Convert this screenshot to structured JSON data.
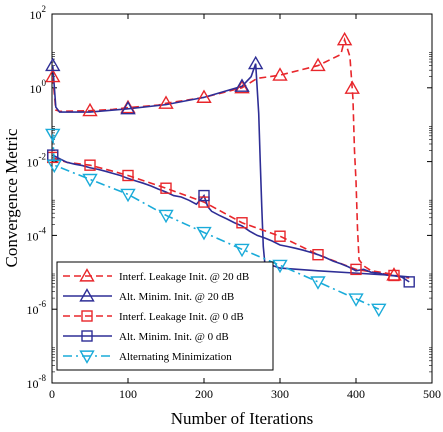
{
  "chart_data": {
    "type": "line",
    "xlabel": "Number of Iterations",
    "ylabel": "Convergence Metric",
    "xlim": [
      0,
      500
    ],
    "ylim": [
      1e-08,
      100
    ],
    "yscale": "log",
    "xticks": [
      0,
      100,
      200,
      300,
      400,
      500
    ],
    "xtick_labels": [
      "0",
      "100",
      "200",
      "300",
      "400",
      "500"
    ],
    "yticks": [
      1e-08,
      1e-06,
      0.0001,
      0.01,
      1,
      100
    ],
    "ytick_labels": [
      {
        "base": "10",
        "exp": "-8"
      },
      {
        "base": "10",
        "exp": "-6"
      },
      {
        "base": "10",
        "exp": "-4"
      },
      {
        "base": "10",
        "exp": "-2"
      },
      {
        "base": "10",
        "exp": "0"
      },
      {
        "base": "10",
        "exp": "2"
      }
    ],
    "grid": false,
    "legend_position": "bottom-left",
    "series": [
      {
        "name": "Interf. Leakage Init. @ 20 dB",
        "color": "#e8262b",
        "dash": "dash",
        "marker": "triangle-up",
        "points": [
          [
            1,
            2
          ],
          [
            5,
            0.25
          ],
          [
            10,
            0.23
          ],
          [
            50,
            0.24
          ],
          [
            80,
            0.26
          ],
          [
            100,
            0.29
          ],
          [
            140,
            0.34
          ],
          [
            150,
            0.38
          ],
          [
            200,
            0.55
          ],
          [
            250,
            1.0
          ],
          [
            270,
            1.8
          ],
          [
            300,
            2.2
          ],
          [
            350,
            4.0
          ],
          [
            380,
            8.0
          ],
          [
            385,
            20
          ],
          [
            392,
            7.0
          ],
          [
            396,
            0.5
          ],
          [
            398,
            0.02
          ],
          [
            400,
            0.003
          ],
          [
            402,
            0.00015
          ],
          [
            404,
            2.2e-05
          ],
          [
            410,
            1.5e-05
          ],
          [
            420,
            1.1e-05
          ],
          [
            440,
            9.5e-06
          ],
          [
            460,
            7.5e-06
          ],
          [
            470,
            7e-06
          ]
        ],
        "marker_x": [
          1,
          50,
          100,
          150,
          200,
          250,
          300,
          350,
          385,
          395,
          450
        ]
      },
      {
        "name": "Alt. Minim. Init. @ 20 dB",
        "color": "#2e2e96",
        "dash": "solid",
        "marker": "triangle-up",
        "points": [
          [
            1,
            4
          ],
          [
            5,
            0.3
          ],
          [
            10,
            0.22
          ],
          [
            50,
            0.22
          ],
          [
            100,
            0.27
          ],
          [
            150,
            0.35
          ],
          [
            200,
            0.55
          ],
          [
            250,
            1.1
          ],
          [
            262,
            2.0
          ],
          [
            268,
            4.5
          ],
          [
            272,
            0.2
          ],
          [
            274,
            0.01
          ],
          [
            276,
            0.0006
          ],
          [
            278,
            5e-05
          ],
          [
            280,
            1.8e-05
          ],
          [
            300,
            1.3e-05
          ],
          [
            350,
            1.1e-05
          ],
          [
            400,
            9.5e-06
          ],
          [
            440,
            8.5e-06
          ],
          [
            470,
            7.5e-06
          ]
        ],
        "marker_x": [
          1,
          100,
          250,
          268
        ]
      },
      {
        "name": "Interf. Leakage Init. @ 0 dB",
        "color": "#e8262b",
        "dash": "dash",
        "marker": "square",
        "points": [
          [
            1,
            0.013
          ],
          [
            10,
            0.011
          ],
          [
            20,
            0.0095
          ],
          [
            50,
            0.008
          ],
          [
            80,
            0.0055
          ],
          [
            100,
            0.0042
          ],
          [
            150,
            0.0019
          ],
          [
            200,
            0.0008
          ],
          [
            250,
            0.00022
          ],
          [
            300,
            9.5e-05
          ],
          [
            350,
            3e-05
          ],
          [
            400,
            1.2e-05
          ],
          [
            450,
            8.2e-06
          ]
        ],
        "marker_x": [
          1,
          50,
          100,
          150,
          200,
          250,
          300,
          350,
          400,
          450
        ]
      },
      {
        "name": "Alt. Minim. Init. @ 0 dB",
        "color": "#2e2e96",
        "dash": "solid",
        "marker": "square",
        "points": [
          [
            1,
            0.015
          ],
          [
            10,
            0.012
          ],
          [
            20,
            0.0095
          ],
          [
            30,
            0.0085
          ],
          [
            40,
            0.0078
          ],
          [
            50,
            0.0068
          ],
          [
            60,
            0.0062
          ],
          [
            70,
            0.0055
          ],
          [
            80,
            0.0048
          ],
          [
            90,
            0.0042
          ],
          [
            100,
            0.0035
          ],
          [
            110,
            0.003
          ],
          [
            120,
            0.0026
          ],
          [
            130,
            0.0022
          ],
          [
            140,
            0.0018
          ],
          [
            150,
            0.0015
          ],
          [
            160,
            0.0012
          ],
          [
            170,
            0.0011
          ],
          [
            180,
            0.0009
          ],
          [
            190,
            0.0007
          ],
          [
            200,
            0.0012
          ],
          [
            205,
            0.0006
          ],
          [
            210,
            0.00045
          ],
          [
            220,
            0.00035
          ],
          [
            230,
            0.00028
          ],
          [
            240,
            0.00022
          ],
          [
            250,
            0.00018
          ],
          [
            260,
            0.00013
          ],
          [
            270,
            0.0001
          ],
          [
            280,
            8.5e-05
          ],
          [
            290,
            7e-05
          ],
          [
            300,
            5.5e-05
          ],
          [
            310,
            5e-05
          ],
          [
            320,
            4.5e-05
          ],
          [
            330,
            4e-05
          ],
          [
            340,
            3.5e-05
          ],
          [
            350,
            3e-05
          ],
          [
            360,
            2.5e-05
          ],
          [
            370,
            2e-05
          ],
          [
            380,
            1.7e-05
          ],
          [
            390,
            1.4e-05
          ],
          [
            400,
            1.1e-05
          ],
          [
            410,
            1.2e-05
          ],
          [
            420,
            1e-05
          ],
          [
            430,
            9.5e-06
          ],
          [
            440,
            8.5e-06
          ],
          [
            450,
            8e-06
          ],
          [
            460,
            7.5e-06
          ],
          [
            470,
            5.5e-06
          ]
        ],
        "marker_x": [
          1,
          200,
          470
        ]
      },
      {
        "name": "Alternating Minimization",
        "color": "#1aabd9",
        "dash": "dashdot",
        "marker": "triangle-down",
        "points": [
          [
            1,
            0.055
          ],
          [
            3,
            0.008
          ],
          [
            50,
            0.0033
          ],
          [
            100,
            0.0013
          ],
          [
            150,
            0.00035
          ],
          [
            200,
            0.00012
          ],
          [
            250,
            4.2e-05
          ],
          [
            300,
            1.55e-05
          ],
          [
            350,
            5.5e-06
          ],
          [
            400,
            1.9e-06
          ],
          [
            430,
            1e-06
          ]
        ],
        "marker_x": [
          1,
          3,
          50,
          100,
          150,
          200,
          250,
          300,
          350,
          400,
          430
        ]
      }
    ]
  }
}
